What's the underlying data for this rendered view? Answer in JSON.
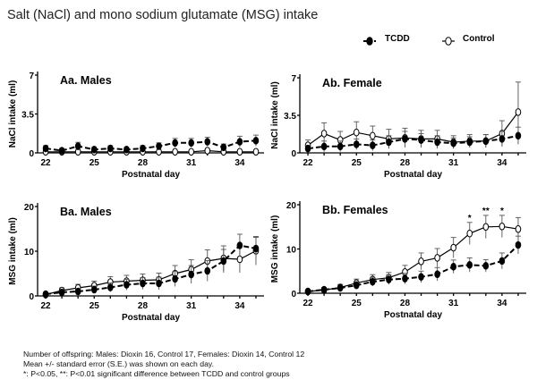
{
  "title": "Salt (NaCl) and mono sodium glutamate (MSG) intake",
  "legend": {
    "tcdd": "TCDD",
    "control": "Control"
  },
  "footnotes": [
    "Number of offspring:  Males: Dioxin 16, Control 17, Females: Dioxin 14, Control 12",
    "Mean +/- standard error (S.E.) was shown on each day.",
    "*: P<0.05, **: P<0.01 significant difference between TCDD and control groups"
  ],
  "chart_data": [
    {
      "type": "line",
      "title": "Aa. Males",
      "xlabel": "Postnatal day",
      "ylabel": "NaCl intake (ml)",
      "xlim": [
        21.5,
        35.5
      ],
      "ylim": [
        0,
        7
      ],
      "xticks": [
        22,
        25,
        28,
        31,
        34
      ],
      "yticks": [
        0,
        3.5,
        7
      ],
      "x": [
        22,
        23,
        24,
        25,
        26,
        27,
        28,
        29,
        30,
        31,
        32,
        33,
        34,
        35
      ],
      "series": [
        {
          "name": "TCDD",
          "values": [
            0.4,
            0.2,
            0.6,
            0.3,
            0.4,
            0.3,
            0.4,
            0.6,
            0.9,
            0.9,
            1.0,
            0.5,
            1.0,
            1.1
          ],
          "errors": [
            0.25,
            0.2,
            0.35,
            0.2,
            0.25,
            0.2,
            0.25,
            0.3,
            0.4,
            0.4,
            0.4,
            0.3,
            0.5,
            0.5
          ]
        },
        {
          "name": "Control",
          "values": [
            0.1,
            0.1,
            0.1,
            0.1,
            0.1,
            0.1,
            0.1,
            0.1,
            0.1,
            0.1,
            0.2,
            0.1,
            0.1,
            0.1
          ],
          "errors": [
            0.1,
            0.1,
            0.1,
            0.1,
            0.1,
            0.1,
            0.1,
            0.1,
            0.1,
            0.1,
            0.1,
            0.1,
            0.1,
            0.1
          ]
        }
      ]
    },
    {
      "type": "line",
      "title": "Ab. Female",
      "xlabel": "Postnatal day",
      "ylabel": "NaCl intake (ml)",
      "xlim": [
        21.5,
        35.5
      ],
      "ylim": [
        0,
        7
      ],
      "xticks": [
        22,
        25,
        28,
        31,
        34
      ],
      "yticks": [
        0,
        3.5,
        7
      ],
      "x": [
        22,
        23,
        24,
        25,
        26,
        27,
        28,
        29,
        30,
        31,
        32,
        33,
        34,
        35
      ],
      "series": [
        {
          "name": "TCDD",
          "values": [
            0.4,
            0.6,
            0.6,
            0.8,
            0.7,
            1.0,
            1.3,
            1.2,
            1.0,
            0.9,
            1.0,
            1.1,
            1.3,
            1.6
          ],
          "errors": [
            0.3,
            0.5,
            0.5,
            0.5,
            0.5,
            0.6,
            0.7,
            0.6,
            0.6,
            0.5,
            0.5,
            0.6,
            0.7,
            0.8
          ]
        },
        {
          "name": "Control",
          "values": [
            0.7,
            1.8,
            1.2,
            1.9,
            1.6,
            1.3,
            1.4,
            1.3,
            1.3,
            1.0,
            1.1,
            1.1,
            1.8,
            3.8
          ],
          "errors": [
            0.5,
            1.0,
            0.8,
            1.0,
            0.9,
            0.9,
            0.9,
            0.8,
            0.8,
            0.6,
            0.6,
            0.6,
            1.2,
            2.8
          ]
        }
      ]
    },
    {
      "type": "line",
      "title": "Ba. Males",
      "xlabel": "Postnatal day",
      "ylabel": "MSG intake (ml)",
      "xlim": [
        21.5,
        35.5
      ],
      "ylim": [
        0,
        20
      ],
      "xticks": [
        22,
        25,
        28,
        31,
        34
      ],
      "yticks": [
        0,
        10,
        20
      ],
      "x": [
        22,
        23,
        24,
        25,
        26,
        27,
        28,
        29,
        30,
        31,
        32,
        33,
        34,
        35
      ],
      "series": [
        {
          "name": "TCDD",
          "values": [
            0.4,
            0.8,
            1.0,
            1.4,
            1.9,
            2.5,
            2.8,
            2.8,
            3.8,
            4.8,
            5.6,
            7.8,
            11.3,
            10.6
          ],
          "errors": [
            0.4,
            0.5,
            0.6,
            0.8,
            1.0,
            1.2,
            1.3,
            1.4,
            1.7,
            2.0,
            2.3,
            2.6,
            2.5,
            2.5
          ]
        },
        {
          "name": "Control",
          "values": [
            0.3,
            1.2,
            1.8,
            2.3,
            3.1,
            3.3,
            3.5,
            3.6,
            5.0,
            5.9,
            7.8,
            8.4,
            8.2,
            10.1
          ],
          "errors": [
            0.3,
            0.6,
            0.8,
            1.0,
            1.2,
            1.3,
            1.4,
            1.5,
            1.8,
            2.2,
            2.5,
            2.8,
            3.0,
            3.2
          ]
        }
      ]
    },
    {
      "type": "line",
      "title": "Bb. Females",
      "xlabel": "Postnatal day",
      "ylabel": "MSG intake (ml)",
      "xlim": [
        21.5,
        35.5
      ],
      "ylim": [
        0,
        20
      ],
      "xticks": [
        22,
        25,
        28,
        31,
        34
      ],
      "yticks": [
        0,
        10,
        20
      ],
      "x": [
        22,
        23,
        24,
        25,
        26,
        27,
        28,
        29,
        30,
        31,
        32,
        33,
        34,
        35
      ],
      "series": [
        {
          "name": "TCDD",
          "values": [
            0.4,
            0.8,
            1.2,
            1.8,
            2.6,
            3.1,
            3.3,
            3.7,
            4.3,
            6.0,
            6.4,
            6.2,
            7.3,
            10.9
          ],
          "errors": [
            0.4,
            0.5,
            0.6,
            0.8,
            1.0,
            1.1,
            1.2,
            1.3,
            1.5,
            1.5,
            1.6,
            1.4,
            1.8,
            2.0
          ]
        },
        {
          "name": "Control",
          "values": [
            0.4,
            0.7,
            1.3,
            2.3,
            3.1,
            3.5,
            4.8,
            7.2,
            8.0,
            10.3,
            13.5,
            15.0,
            15.1,
            14.5
          ],
          "errors": [
            0.4,
            0.5,
            0.7,
            0.9,
            1.1,
            1.2,
            1.5,
            1.9,
            2.1,
            2.3,
            2.5,
            2.6,
            2.5,
            2.6
          ]
        }
      ],
      "annotations": [
        {
          "x": 32,
          "text": "*"
        },
        {
          "x": 33,
          "text": "**"
        },
        {
          "x": 34,
          "text": "*"
        }
      ]
    }
  ]
}
